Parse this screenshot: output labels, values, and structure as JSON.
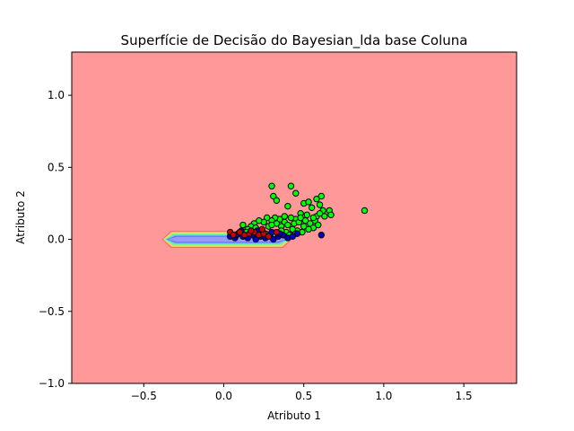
{
  "chart_data": {
    "type": "scatter",
    "title": "Superfície de Decisão do Bayesian_lda base Coluna",
    "xlabel": "Atributo 1",
    "ylabel": "Atributo 2",
    "xlim": [
      -0.95,
      1.83
    ],
    "ylim": [
      -1.0,
      1.3
    ],
    "xticks": [
      -0.5,
      0.0,
      0.5,
      1.0,
      1.5
    ],
    "xtick_labels": [
      "−0.5",
      "0.0",
      "0.5",
      "1.0",
      "1.5"
    ],
    "yticks": [
      -1.0,
      -0.5,
      0.0,
      0.5,
      1.0
    ],
    "ytick_labels": [
      "−1.0",
      "−0.5",
      "0.0",
      "0.5",
      "1.0"
    ],
    "grid": false,
    "legend": "none",
    "background_color": "#ff9999",
    "decision_region": {
      "description": "narrow hexagonal contour band along y≈0",
      "x_range": [
        -0.38,
        0.42
      ],
      "y_half_width": 0.055,
      "contour_colors": [
        "#ff6666",
        "#ffcc66",
        "#99ff99",
        "#66ff66",
        "#66ccff",
        "#6666ff",
        "#9999ff"
      ]
    },
    "series": [
      {
        "color": "#00ff00",
        "points": [
          [
            0.3,
            0.37
          ],
          [
            0.42,
            0.37
          ],
          [
            0.45,
            0.32
          ],
          [
            0.31,
            0.3
          ],
          [
            0.33,
            0.27
          ],
          [
            0.4,
            0.23
          ],
          [
            0.5,
            0.25
          ],
          [
            0.53,
            0.26
          ],
          [
            0.58,
            0.28
          ],
          [
            0.61,
            0.3
          ],
          [
            0.55,
            0.22
          ],
          [
            0.6,
            0.24
          ],
          [
            0.62,
            0.2
          ],
          [
            0.66,
            0.2
          ],
          [
            0.67,
            0.17
          ],
          [
            0.63,
            0.16
          ],
          [
            0.58,
            0.16
          ],
          [
            0.52,
            0.17
          ],
          [
            0.48,
            0.18
          ],
          [
            0.45,
            0.14
          ],
          [
            0.42,
            0.15
          ],
          [
            0.38,
            0.12
          ],
          [
            0.35,
            0.14
          ],
          [
            0.32,
            0.15
          ],
          [
            0.3,
            0.13
          ],
          [
            0.27,
            0.15
          ],
          [
            0.25,
            0.12
          ],
          [
            0.22,
            0.13
          ],
          [
            0.19,
            0.11
          ],
          [
            0.17,
            0.09
          ],
          [
            0.12,
            0.1
          ],
          [
            0.15,
            0.07
          ],
          [
            0.2,
            0.08
          ],
          [
            0.24,
            0.06
          ],
          [
            0.28,
            0.09
          ],
          [
            0.33,
            0.11
          ],
          [
            0.36,
            0.09
          ],
          [
            0.4,
            0.1
          ],
          [
            0.44,
            0.11
          ],
          [
            0.47,
            0.12
          ],
          [
            0.51,
            0.13
          ],
          [
            0.54,
            0.11
          ],
          [
            0.57,
            0.13
          ],
          [
            0.59,
            0.1
          ],
          [
            0.56,
            0.08
          ],
          [
            0.53,
            0.07
          ],
          [
            0.5,
            0.09
          ],
          [
            0.46,
            0.06
          ],
          [
            0.43,
            0.07
          ],
          [
            0.39,
            0.05
          ],
          [
            0.36,
            0.06
          ],
          [
            0.41,
            0.03
          ],
          [
            0.45,
            0.04
          ],
          [
            0.49,
            0.05
          ],
          [
            0.88,
            0.2
          ],
          [
            0.6,
            0.18
          ],
          [
            0.56,
            0.15
          ],
          [
            0.48,
            0.15
          ],
          [
            0.38,
            0.16
          ],
          [
            0.3,
            0.1
          ],
          [
            0.26,
            0.04
          ],
          [
            0.22,
            0.05
          ],
          [
            0.18,
            0.04
          ],
          [
            0.14,
            0.05
          ]
        ]
      },
      {
        "color": "#0000cc",
        "points": [
          [
            0.04,
            0.02
          ],
          [
            0.07,
            0.01
          ],
          [
            0.09,
            0.04
          ],
          [
            0.12,
            0.02
          ],
          [
            0.15,
            0.01
          ],
          [
            0.18,
            0.03
          ],
          [
            0.2,
            0.0
          ],
          [
            0.23,
            0.02
          ],
          [
            0.26,
            0.01
          ],
          [
            0.29,
            0.03
          ],
          [
            0.31,
            0.0
          ],
          [
            0.34,
            0.02
          ],
          [
            0.37,
            0.03
          ],
          [
            0.4,
            0.01
          ],
          [
            0.43,
            0.02
          ],
          [
            0.46,
            0.04
          ],
          [
            0.61,
            0.03
          ],
          [
            0.11,
            0.06
          ],
          [
            0.21,
            0.06
          ],
          [
            0.3,
            0.05
          ],
          [
            0.35,
            0.04
          ],
          [
            0.08,
            0.03
          ]
        ]
      },
      {
        "color": "#cc0000",
        "points": [
          [
            0.04,
            0.05
          ],
          [
            0.06,
            0.03
          ],
          [
            0.1,
            0.05
          ],
          [
            0.13,
            0.03
          ],
          [
            0.16,
            0.04
          ],
          [
            0.19,
            0.05
          ],
          [
            0.22,
            0.03
          ],
          [
            0.25,
            0.04
          ],
          [
            0.28,
            0.02
          ],
          [
            0.33,
            0.05
          ],
          [
            0.17,
            0.06
          ],
          [
            0.24,
            0.07
          ]
        ]
      }
    ]
  }
}
